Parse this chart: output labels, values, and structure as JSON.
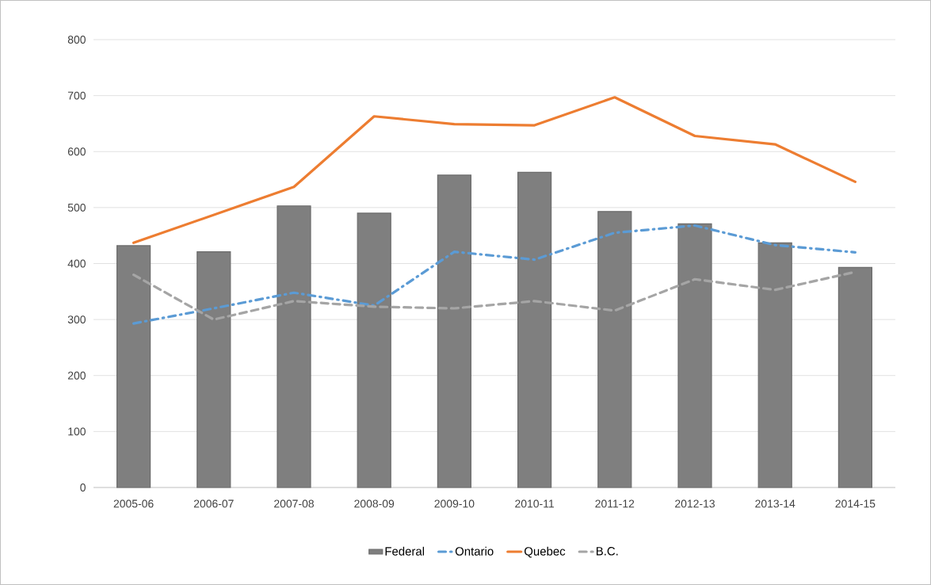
{
  "chart_data": {
    "type": "bar",
    "categories": [
      "2005-06",
      "2006-07",
      "2007-08",
      "2008-09",
      "2009-10",
      "2010-11",
      "2011-12",
      "2012-13",
      "2013-14",
      "2014-15"
    ],
    "series": [
      {
        "name": "Federal",
        "color": "#7f7f7f",
        "values": [
          432,
          421,
          503,
          490,
          558,
          563,
          493,
          471,
          437,
          393
        ]
      },
      {
        "name": "Ontario",
        "type": "line",
        "color": "#5b9bd5",
        "line_style": "dashdot",
        "values": [
          293,
          320,
          348,
          325,
          421,
          407,
          455,
          468,
          433,
          420
        ]
      },
      {
        "name": "Quebec",
        "type": "line",
        "color": "#ed7d31",
        "line_style": "solid",
        "values": [
          437,
          487,
          537,
          663,
          649,
          647,
          697,
          628,
          613,
          546
        ]
      },
      {
        "name": "B.C.",
        "type": "line",
        "color": "#a5a5a5",
        "line_style": "dashed",
        "values": [
          380,
          300,
          333,
          323,
          320,
          333,
          316,
          372,
          353,
          385
        ]
      }
    ],
    "ylim": [
      0,
      800
    ],
    "yticks": [
      0,
      100,
      200,
      300,
      400,
      500,
      600,
      700,
      800
    ],
    "grid": "y",
    "legend": "bottom"
  }
}
